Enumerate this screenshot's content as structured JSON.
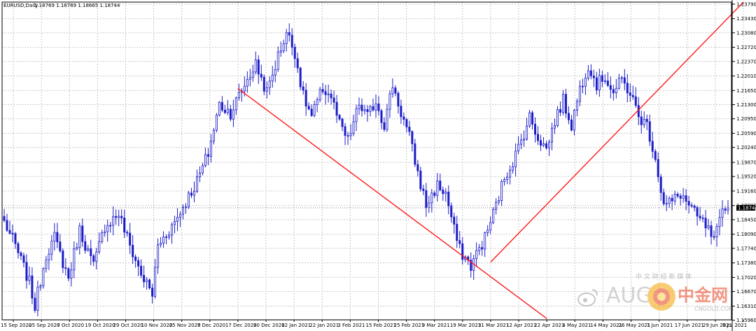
{
  "header": {
    "symbol": "EURUSD,Daily",
    "ohlc": "1.18769 1.18769 1.18665 1.18744"
  },
  "price_tag": "1.18744",
  "watermark": {
    "brand_latin": "AUG",
    "brand_cn": "中金网",
    "tagline": "中 文 财 经 新 媒 体",
    "domain": "CNGOLD.COM"
  },
  "colors": {
    "background": "#ffffff",
    "grid": "#c8c8c8",
    "candle": "#1c1cc8",
    "trendline": "#ff1a1a",
    "price_line": "#808080"
  },
  "chart_data": {
    "type": "candlestick",
    "title": "EURUSD,Daily",
    "ylim": [
      1.1597,
      1.2384
    ],
    "y_ticks": [
      "1.23790",
      "1.23430",
      "1.23080",
      "1.22720",
      "1.22370",
      "1.22010",
      "1.21650",
      "1.21300",
      "1.20950",
      "1.20590",
      "1.20240",
      "1.19870",
      "1.19520",
      "1.19160",
      "1.18800",
      "1.18450",
      "1.18090",
      "1.17740",
      "1.17380",
      "1.17020",
      "1.16670",
      "1.16310",
      "1.15960"
    ],
    "x_ticks": [
      "15 Sep 2020",
      "25 Sep 2020",
      "7 Oct 2020",
      "19 Oct 2020",
      "29 Oct 2020",
      "10 Nov 2020",
      "25 Nov 2020",
      "7 Dec 2020",
      "17 Dec 2020",
      "30 Dec 2020",
      "12 Jan 2021",
      "22 Jan 2021",
      "3 Feb 2021",
      "15 Feb 2021",
      "25 Feb 2021",
      "9 Mar 2021",
      "19 Mar 2021",
      "31 Mar 2021",
      "12 Apr 2021",
      "22 Apr 2021",
      "4 May 2021",
      "14 May 2021",
      "26 May 2021",
      "7 Jun 2021",
      "17 Jun 2021",
      "29 Jun 2021",
      "9 Jul 2021"
    ],
    "last_price": 1.18744,
    "grid": true,
    "trendlines": [
      {
        "from": [
          "17 Dec 2020",
          1.217
        ],
        "to": [
          "22 Apr 2021",
          1.16
        ]
      },
      {
        "from": [
          "31 Mar 2021",
          1.174
        ],
        "to": [
          "9 Jul 2021",
          1.2384
        ]
      }
    ],
    "waypoints": [
      [
        0,
        1.184
      ],
      [
        4,
        1.178
      ],
      [
        9,
        1.169
      ],
      [
        11,
        1.163
      ],
      [
        15,
        1.176
      ],
      [
        18,
        1.18
      ],
      [
        23,
        1.17
      ],
      [
        27,
        1.182
      ],
      [
        32,
        1.173
      ],
      [
        36,
        1.183
      ],
      [
        41,
        1.186
      ],
      [
        45,
        1.178
      ],
      [
        49,
        1.171
      ],
      [
        53,
        1.166
      ],
      [
        55,
        1.178
      ],
      [
        61,
        1.184
      ],
      [
        65,
        1.189
      ],
      [
        69,
        1.194
      ],
      [
        73,
        1.201
      ],
      [
        77,
        1.213
      ],
      [
        81,
        1.211
      ],
      [
        86,
        1.218
      ],
      [
        90,
        1.223
      ],
      [
        94,
        1.216
      ],
      [
        98,
        1.225
      ],
      [
        101,
        1.231
      ],
      [
        104,
        1.226
      ],
      [
        107,
        1.215
      ],
      [
        110,
        1.21
      ],
      [
        114,
        1.217
      ],
      [
        117,
        1.215
      ],
      [
        120,
        1.208
      ],
      [
        123,
        1.204
      ],
      [
        127,
        1.213
      ],
      [
        130,
        1.21
      ],
      [
        133,
        1.214
      ],
      [
        136,
        1.208
      ],
      [
        139,
        1.218
      ],
      [
        142,
        1.211
      ],
      [
        145,
        1.205
      ],
      [
        148,
        1.196
      ],
      [
        151,
        1.188
      ],
      [
        155,
        1.193
      ],
      [
        158,
        1.191
      ],
      [
        161,
        1.182
      ],
      [
        163,
        1.177
      ],
      [
        167,
        1.173
      ],
      [
        169,
        1.176
      ],
      [
        172,
        1.18
      ],
      [
        176,
        1.188
      ],
      [
        179,
        1.195
      ],
      [
        182,
        1.199
      ],
      [
        185,
        1.204
      ],
      [
        188,
        1.21
      ],
      [
        191,
        1.205
      ],
      [
        194,
        1.202
      ],
      [
        197,
        1.209
      ],
      [
        200,
        1.214
      ],
      [
        203,
        1.208
      ],
      [
        206,
        1.217
      ],
      [
        209,
        1.223
      ],
      [
        212,
        1.218
      ],
      [
        215,
        1.22
      ],
      [
        218,
        1.216
      ],
      [
        221,
        1.219
      ],
      [
        224,
        1.216
      ],
      [
        227,
        1.21
      ],
      [
        230,
        1.208
      ],
      [
        233,
        1.2
      ],
      [
        236,
        1.188
      ],
      [
        239,
        1.189
      ],
      [
        242,
        1.191
      ],
      [
        245,
        1.188
      ],
      [
        248,
        1.185
      ],
      [
        251,
        1.183
      ],
      [
        254,
        1.179
      ],
      [
        257,
        1.186
      ],
      [
        259,
        1.1874
      ]
    ]
  }
}
